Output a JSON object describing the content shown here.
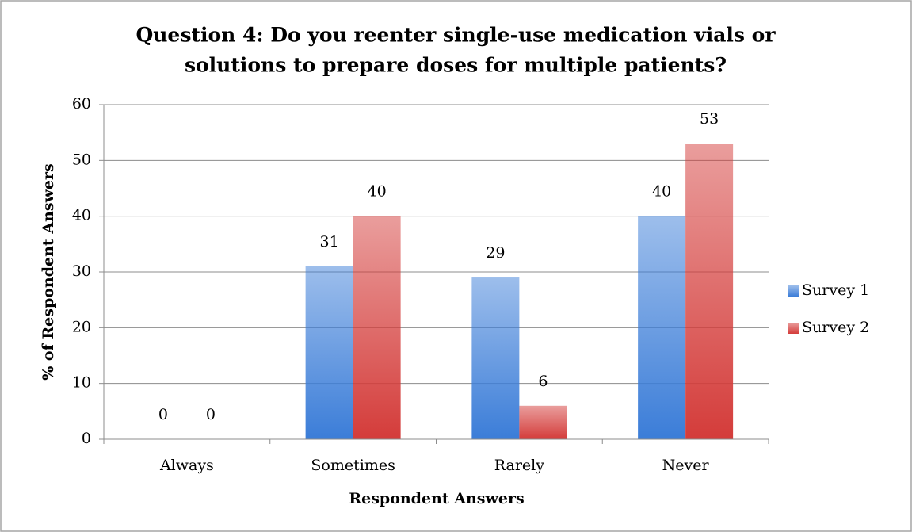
{
  "chart_data": {
    "type": "bar",
    "title": [
      "Question 4: Do you reenter single-use medication vials or",
      "solutions to prepare doses for multiple patients?"
    ],
    "x_label": "Respondent Answers",
    "y_label": "% of Respondent Answers",
    "categories": [
      "Always",
      "Sometimes",
      "Rarely",
      "Never"
    ],
    "series": [
      {
        "name": "Survey 1",
        "color": "#3b7dd8",
        "values": [
          0,
          31,
          29,
          40
        ]
      },
      {
        "name": "Survey 2",
        "color": "#d43c3a",
        "values": [
          0,
          40,
          6,
          53
        ]
      }
    ],
    "ylim": [
      0,
      60
    ],
    "yticks": [
      0,
      10,
      20,
      30,
      40,
      50,
      60
    ],
    "grid": true,
    "legend": "right"
  }
}
